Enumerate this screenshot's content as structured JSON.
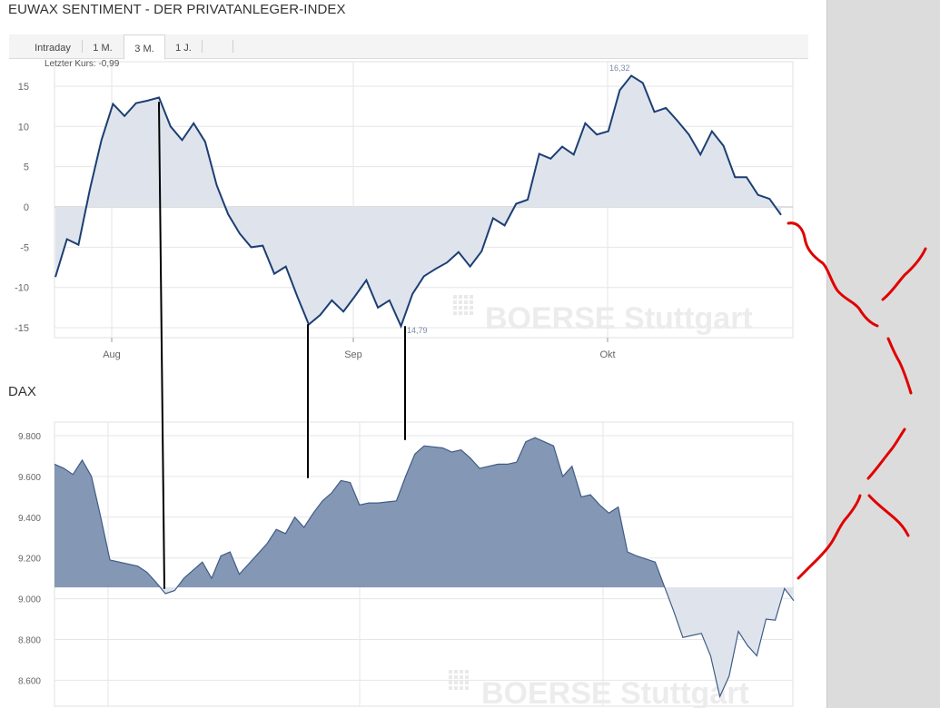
{
  "title": "EUWAX SENTIMENT - DER PRIVATANLEGER-INDEX",
  "tabs": [
    {
      "label": "Intraday",
      "active": false
    },
    {
      "label": "1 M.",
      "active": false
    },
    {
      "label": "3 M.",
      "active": true
    },
    {
      "label": "1 J.",
      "active": false
    }
  ],
  "watermark": "BOERSE Stuttgart",
  "colors": {
    "line": "#1c3f73",
    "area_light": "#dfe4ec",
    "area_dark": "#8497b4",
    "annotation_red": "#e00000"
  },
  "chart_data": [
    {
      "type": "area",
      "subtitle": "Letzter Kurs: -0,99",
      "x_tick_labels": [
        "Aug",
        "Sep",
        "Okt"
      ],
      "ylim": [
        -16.5,
        17
      ],
      "yticks": [
        15,
        10,
        5,
        0,
        -5,
        -10,
        -15
      ],
      "grid": true,
      "annotations": [
        {
          "label": "16,32"
        },
        {
          "label": "-14,79"
        }
      ],
      "values": [
        -8.7,
        -4,
        -4.7,
        2.2,
        8.3,
        12.8,
        11.3,
        12.9,
        13.2,
        13.6,
        10,
        8.3,
        10.4,
        8.1,
        2.7,
        -0.9,
        -3.3,
        -5,
        -4.8,
        -8.3,
        -7.4,
        -11.1,
        -14.6,
        -13.4,
        -11.6,
        -13,
        -11.1,
        -9.1,
        -12.5,
        -11.6,
        -14.8,
        -10.8,
        -8.6,
        -7.7,
        -6.9,
        -5.6,
        -7.4,
        -5.5,
        -1.4,
        -2.3,
        0.4,
        0.9,
        6.6,
        6,
        7.5,
        6.5,
        10.4,
        9,
        9.4,
        14.5,
        16.3,
        15.4,
        11.8,
        12.3,
        10.7,
        9,
        6.5,
        9.4,
        7.6,
        3.7,
        3.7,
        1.5,
        1,
        -0.99
      ]
    },
    {
      "type": "area",
      "title": "DAX",
      "ylim": [
        8500,
        9900
      ],
      "yticks": [
        9800,
        9600,
        9400,
        9200,
        9000,
        8800,
        8600
      ],
      "ytick_labels": [
        "9.800",
        "9.600",
        "9.400",
        "9.200",
        "9.000",
        "8.800",
        "8.600"
      ],
      "baseline": 9055,
      "grid": true,
      "values": [
        9660,
        9640,
        9610,
        9680,
        9600,
        9400,
        9190,
        9180,
        9170,
        9160,
        9130,
        9080,
        9025,
        9040,
        9100,
        9140,
        9180,
        9100,
        9210,
        9230,
        9120,
        9170,
        9220,
        9270,
        9340,
        9320,
        9400,
        9350,
        9420,
        9480,
        9520,
        9580,
        9570,
        9460,
        9470,
        9470,
        9475,
        9480,
        9600,
        9710,
        9750,
        9745,
        9740,
        9720,
        9730,
        9690,
        9640,
        9650,
        9660,
        9660,
        9670,
        9770,
        9790,
        9770,
        9750,
        9600,
        9650,
        9500,
        9510,
        9460,
        9420,
        9450,
        9230,
        9210,
        9195,
        9180,
        9060,
        8940,
        8810,
        8820,
        8830,
        8720,
        8520,
        8620,
        8840,
        8770,
        8720,
        8900,
        8895,
        9050,
        8990
      ]
    }
  ]
}
